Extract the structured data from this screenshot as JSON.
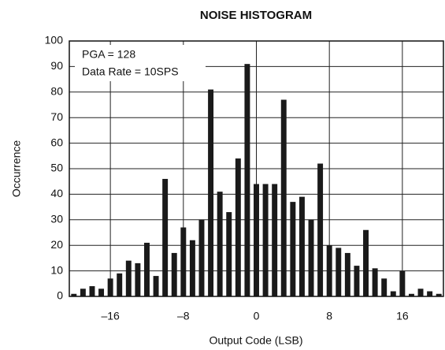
{
  "chart_data": {
    "type": "histogram",
    "title": "NOISE HISTOGRAM",
    "xlabel": "Output Code (LSB)",
    "ylabel": "Occurrence",
    "annotations": [
      "PGA = 128",
      "Data Rate = 10SPS"
    ],
    "bins": [
      -20.5,
      -19.5,
      -18.5,
      -17.5,
      -16.5,
      -15.5,
      -14.5,
      -13.5,
      -12.5,
      -11.5,
      -10.5,
      -9.5,
      -8.5,
      -7.5,
      -6.5,
      -5.5,
      -4.5,
      -3.5,
      -2.5,
      -1.5,
      -0.5,
      0.5,
      1.5,
      2.5,
      3.5,
      4.5,
      5.5,
      6.5,
      7.5,
      8.5,
      9.5,
      10.5,
      11.5,
      12.5,
      13.5,
      14.5,
      15.5,
      16.5,
      17.5,
      18.5,
      19.5,
      20.5
    ],
    "counts": [
      1,
      3,
      4,
      3,
      7,
      9,
      14,
      13,
      21,
      8,
      46,
      17,
      27,
      22,
      30,
      81,
      41,
      33,
      54,
      91,
      44,
      44,
      44,
      77,
      37,
      39,
      30,
      52,
      20,
      19,
      17,
      12,
      26,
      11,
      7,
      2,
      10,
      1,
      3,
      2,
      1
    ],
    "color": "#1a1a1a",
    "xlim": [
      -20.5,
      20.5
    ],
    "xticks": [
      {
        "value": -16,
        "label": "–16"
      },
      {
        "value": -8,
        "label": "–8"
      },
      0,
      8,
      16
    ],
    "ylim": [
      0,
      100
    ],
    "yticks": [
      0,
      10,
      20,
      30,
      40,
      50,
      60,
      70,
      80,
      90,
      100
    ],
    "grid": true
  }
}
